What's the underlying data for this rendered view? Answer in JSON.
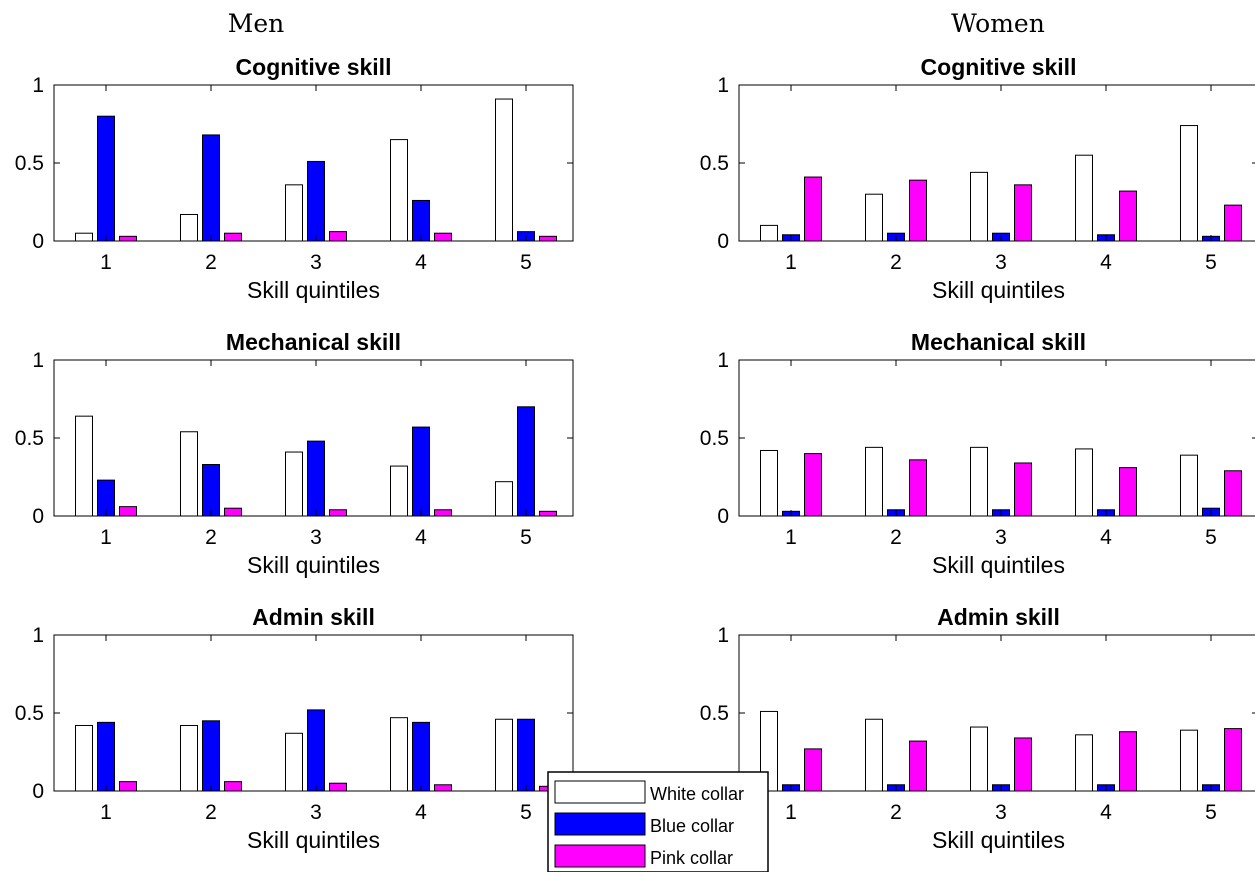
{
  "figure": {
    "column_titles": [
      "Men",
      "Women"
    ]
  },
  "legend": {
    "entries": [
      {
        "label": "White collar",
        "color": "#ffffff"
      },
      {
        "label": "Blue collar",
        "color": "#0000ff"
      },
      {
        "label": "Pink collar",
        "color": "#ff00ff"
      }
    ]
  },
  "chart_data": [
    {
      "type": "bar",
      "group": "Men",
      "title": "Cognitive skill",
      "xlabel": "Skill quintiles",
      "ylabel": "",
      "categories": [
        "1",
        "2",
        "3",
        "4",
        "5"
      ],
      "ylim": [
        0,
        1
      ],
      "yticks": [
        "0",
        "0.5",
        "1"
      ],
      "series": [
        {
          "name": "White collar",
          "values": [
            0.05,
            0.17,
            0.36,
            0.65,
            0.91
          ]
        },
        {
          "name": "Blue collar",
          "values": [
            0.8,
            0.68,
            0.51,
            0.26,
            0.06
          ]
        },
        {
          "name": "Pink collar",
          "values": [
            0.03,
            0.05,
            0.06,
            0.05,
            0.03
          ]
        }
      ]
    },
    {
      "type": "bar",
      "group": "Women",
      "title": "Cognitive skill",
      "xlabel": "Skill quintiles",
      "ylabel": "",
      "categories": [
        "1",
        "2",
        "3",
        "4",
        "5"
      ],
      "ylim": [
        0,
        1
      ],
      "yticks": [
        "0",
        "0.5",
        "1"
      ],
      "series": [
        {
          "name": "White collar",
          "values": [
            0.1,
            0.3,
            0.44,
            0.55,
            0.74
          ]
        },
        {
          "name": "Blue collar",
          "values": [
            0.04,
            0.05,
            0.05,
            0.04,
            0.03
          ]
        },
        {
          "name": "Pink collar",
          "values": [
            0.41,
            0.39,
            0.36,
            0.32,
            0.23
          ]
        }
      ]
    },
    {
      "type": "bar",
      "group": "Men",
      "title": "Mechanical skill",
      "xlabel": "Skill quintiles",
      "ylabel": "",
      "categories": [
        "1",
        "2",
        "3",
        "4",
        "5"
      ],
      "ylim": [
        0,
        1
      ],
      "yticks": [
        "0",
        "0.5",
        "1"
      ],
      "series": [
        {
          "name": "White collar",
          "values": [
            0.64,
            0.54,
            0.41,
            0.32,
            0.22
          ]
        },
        {
          "name": "Blue collar",
          "values": [
            0.23,
            0.33,
            0.48,
            0.57,
            0.7
          ]
        },
        {
          "name": "Pink collar",
          "values": [
            0.06,
            0.05,
            0.04,
            0.04,
            0.03
          ]
        }
      ]
    },
    {
      "type": "bar",
      "group": "Women",
      "title": "Mechanical skill",
      "xlabel": "Skill quintiles",
      "ylabel": "",
      "categories": [
        "1",
        "2",
        "3",
        "4",
        "5"
      ],
      "ylim": [
        0,
        1
      ],
      "yticks": [
        "0",
        "0.5",
        "1"
      ],
      "series": [
        {
          "name": "White collar",
          "values": [
            0.42,
            0.44,
            0.44,
            0.43,
            0.39
          ]
        },
        {
          "name": "Blue collar",
          "values": [
            0.03,
            0.04,
            0.04,
            0.04,
            0.05
          ]
        },
        {
          "name": "Pink collar",
          "values": [
            0.4,
            0.36,
            0.34,
            0.31,
            0.29
          ]
        }
      ]
    },
    {
      "type": "bar",
      "group": "Men",
      "title": "Admin skill",
      "xlabel": "Skill quintiles",
      "ylabel": "",
      "categories": [
        "1",
        "2",
        "3",
        "4",
        "5"
      ],
      "ylim": [
        0,
        1
      ],
      "yticks": [
        "0",
        "0.5",
        "1"
      ],
      "series": [
        {
          "name": "White collar",
          "values": [
            0.42,
            0.42,
            0.37,
            0.47,
            0.46
          ]
        },
        {
          "name": "Blue collar",
          "values": [
            0.44,
            0.45,
            0.52,
            0.44,
            0.46
          ]
        },
        {
          "name": "Pink collar",
          "values": [
            0.06,
            0.06,
            0.05,
            0.04,
            0.03
          ]
        }
      ]
    },
    {
      "type": "bar",
      "group": "Women",
      "title": "Admin skill",
      "xlabel": "Skill quintiles",
      "ylabel": "",
      "categories": [
        "1",
        "2",
        "3",
        "4",
        "5"
      ],
      "ylim": [
        0,
        1
      ],
      "yticks": [
        "0",
        "0.5",
        "1"
      ],
      "series": [
        {
          "name": "White collar",
          "values": [
            0.51,
            0.46,
            0.41,
            0.36,
            0.39
          ]
        },
        {
          "name": "Blue collar",
          "values": [
            0.04,
            0.04,
            0.04,
            0.04,
            0.04
          ]
        },
        {
          "name": "Pink collar",
          "values": [
            0.27,
            0.32,
            0.34,
            0.38,
            0.4
          ]
        }
      ]
    }
  ]
}
